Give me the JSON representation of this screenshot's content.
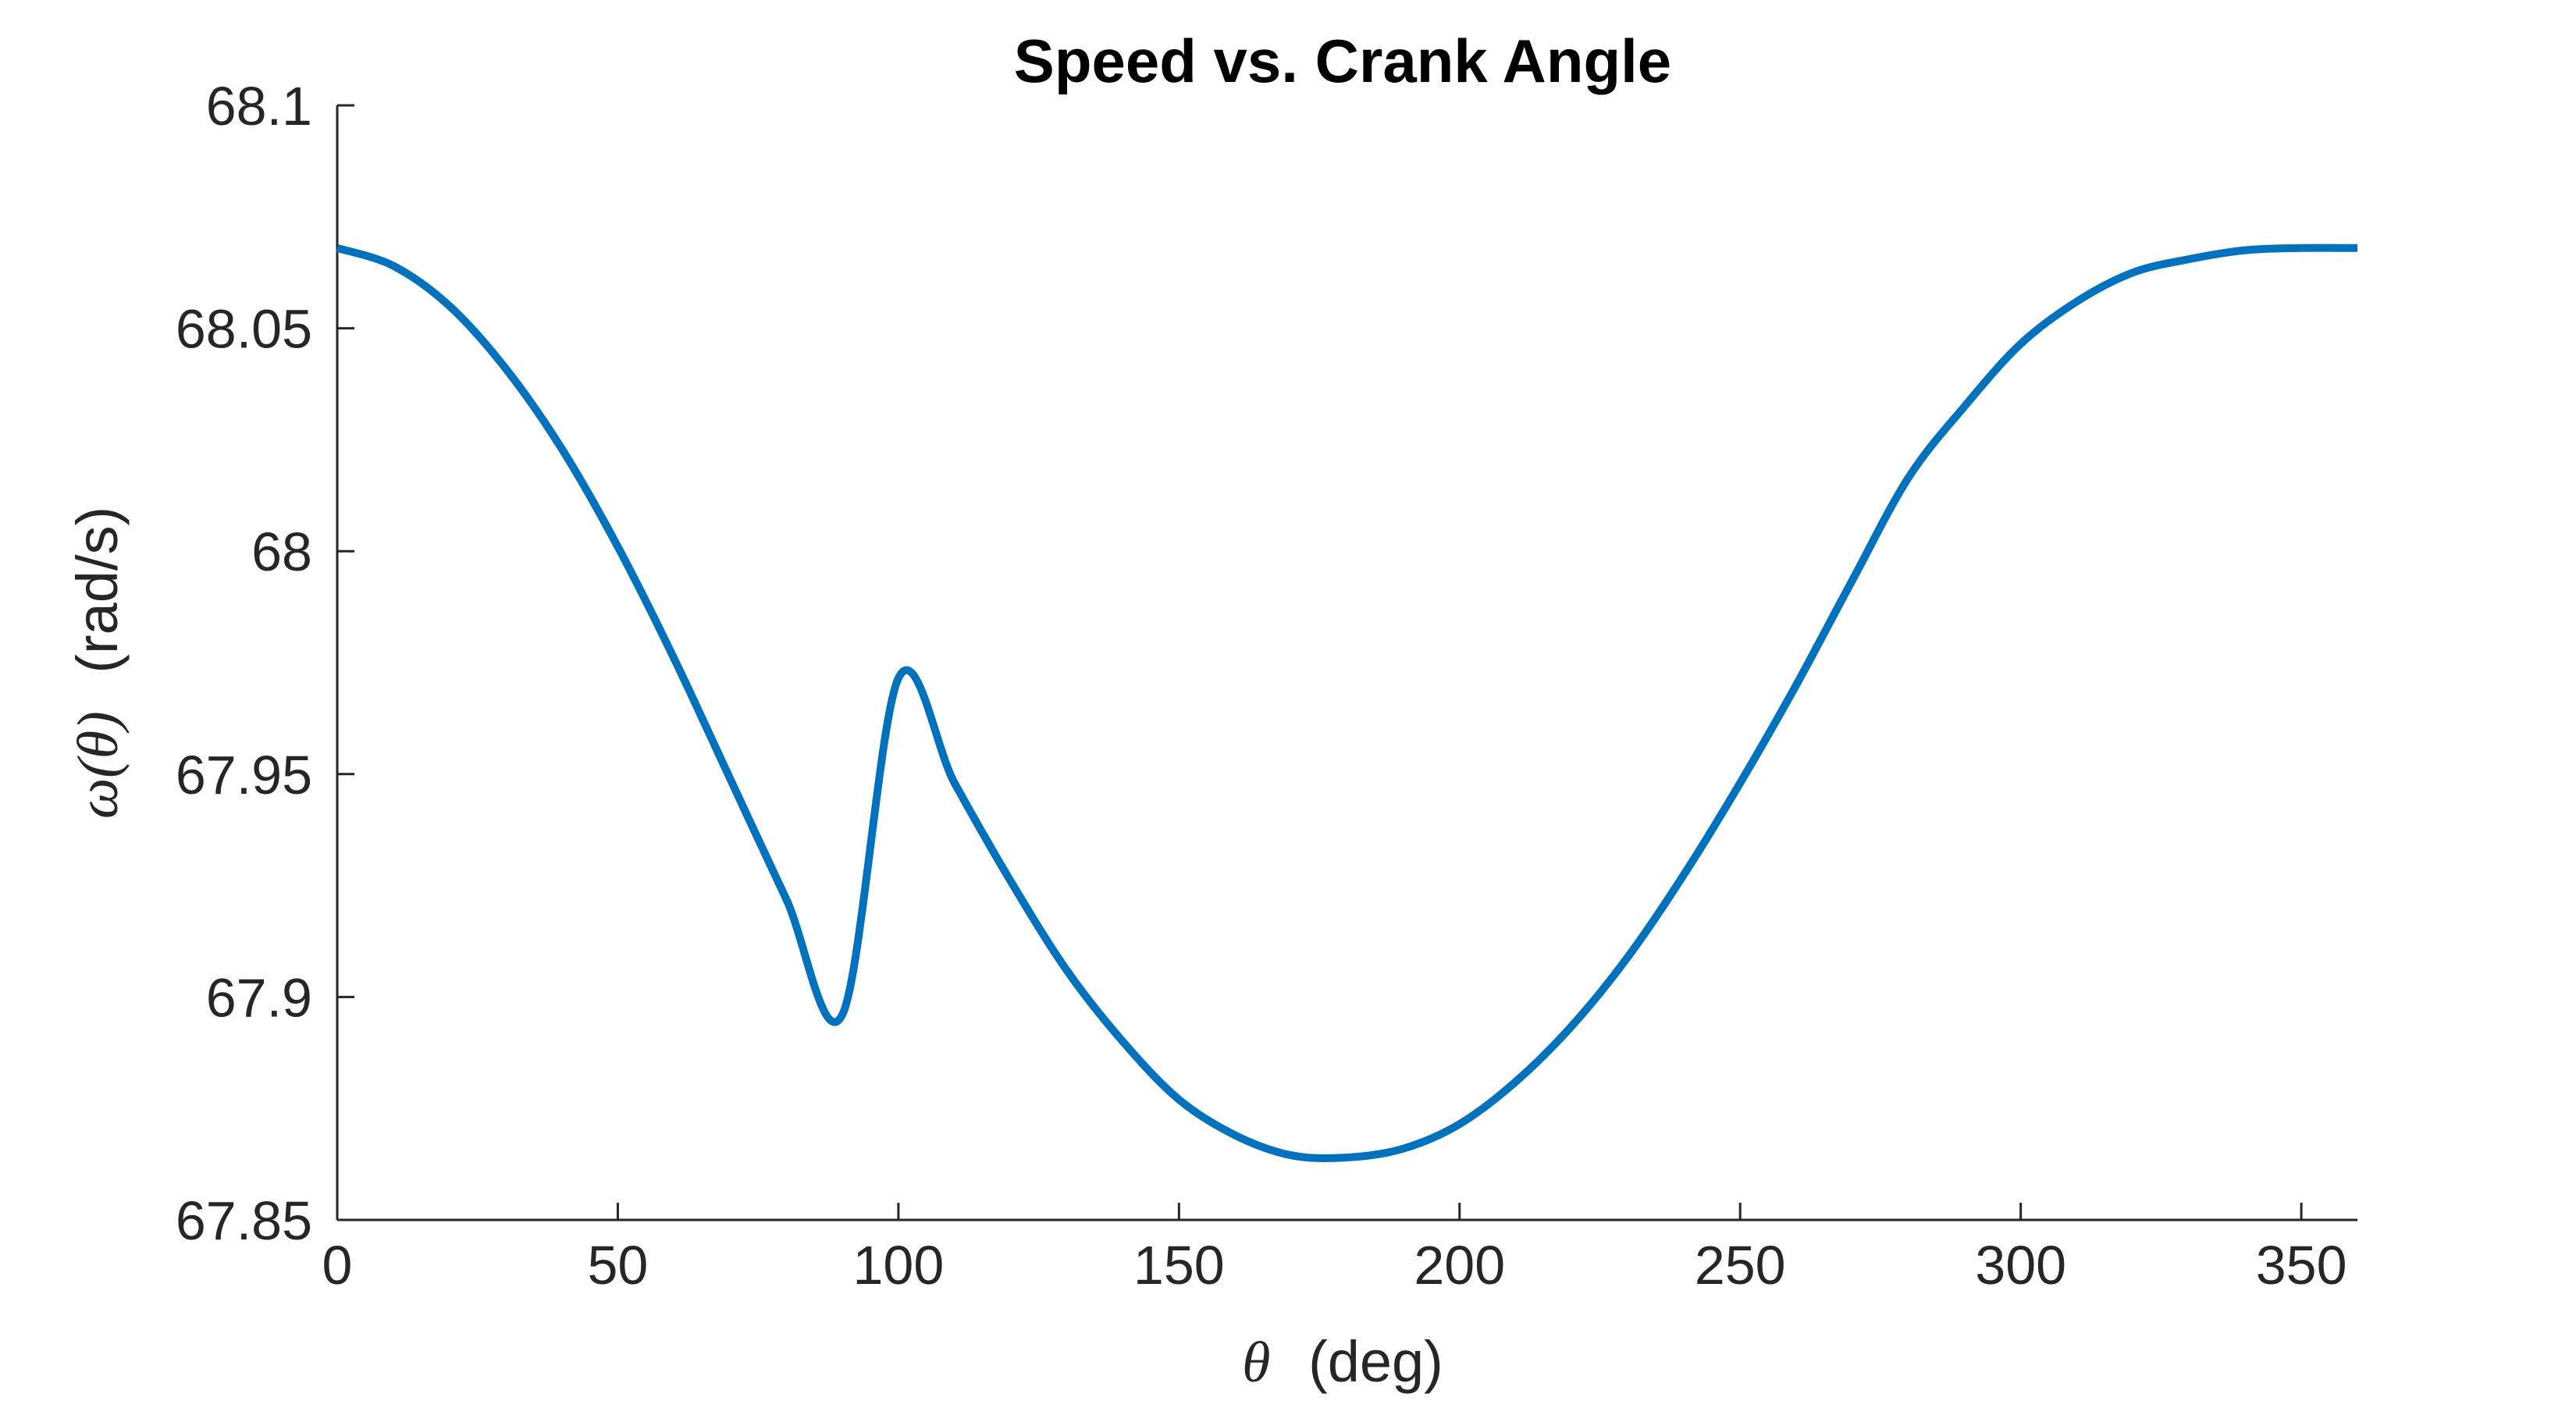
{
  "chart_data": {
    "type": "line",
    "title": "Speed vs. Crank Angle",
    "xlabel": {
      "symbol": "θ",
      "unit": "(deg)"
    },
    "ylabel": {
      "symbol": "ω(θ)",
      "unit": "(rad/s)"
    },
    "xlim": [
      0,
      360
    ],
    "ylim": [
      67.85,
      68.1
    ],
    "xticks": [
      0,
      50,
      100,
      150,
      200,
      250,
      300,
      350
    ],
    "xtick_labels": [
      "0",
      "50",
      "100",
      "150",
      "200",
      "250",
      "300",
      "350"
    ],
    "yticks": [
      67.85,
      67.9,
      67.95,
      68,
      68.05,
      68.1
    ],
    "ytick_labels": [
      "67.85",
      "67.9",
      "67.95",
      "68",
      "68.05",
      "68.1"
    ],
    "grid": false,
    "series": [
      {
        "color": "#0072BD",
        "x": [
          0,
          10,
          20,
          30,
          40,
          50,
          60,
          70,
          80,
          90,
          100,
          110,
          120,
          130,
          140,
          150,
          160,
          170,
          180,
          190,
          200,
          210,
          220,
          230,
          240,
          250,
          260,
          270,
          280,
          290,
          300,
          310,
          320,
          330,
          340,
          350,
          360
        ],
        "y": [
          68.068,
          68.064,
          68.055,
          68.041,
          68.023,
          68.001,
          67.976,
          67.949,
          67.922,
          67.896,
          67.9715,
          67.948,
          67.926,
          67.906,
          67.89,
          67.877,
          67.869,
          67.8645,
          67.864,
          67.866,
          67.8715,
          67.881,
          67.8935,
          67.909,
          67.9275,
          67.948,
          67.97,
          67.9935,
          68.0165,
          68.0325,
          68.0465,
          68.056,
          68.0625,
          68.0655,
          68.0675,
          68.068,
          68.068
        ]
      }
    ]
  }
}
